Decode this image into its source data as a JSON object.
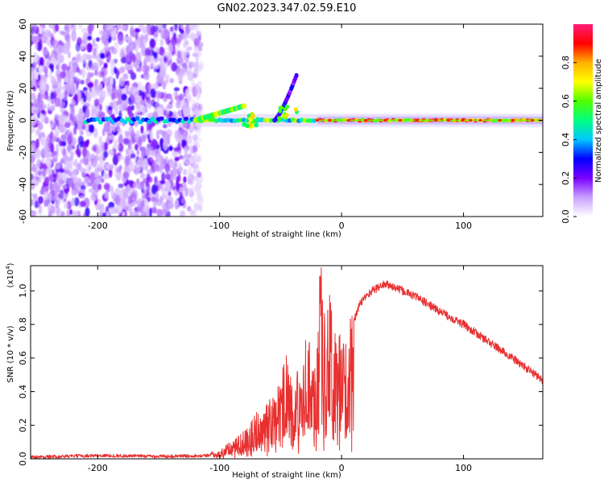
{
  "chart_data": [
    {
      "type": "heatmap",
      "title": "GN02.2023.347.02.59.E10",
      "xlabel": "Height of straight line (km)",
      "ylabel": "Frequency (Hz)",
      "xlim": [
        -255,
        165
      ],
      "ylim": [
        -60,
        60
      ],
      "xticks": [
        -200,
        -100,
        0,
        100
      ],
      "yticks": [
        -60,
        -40,
        -20,
        0,
        20,
        40,
        60
      ],
      "colorbar": {
        "label": "Normalized spectral amplitude",
        "range": [
          0.0,
          1.0
        ],
        "ticks": [
          "0.0",
          "0.2",
          "0.4",
          "0.6",
          "0.8"
        ],
        "colormap": [
          "#ffffff",
          "#c8a0ff",
          "#7b00ff",
          "#0000ff",
          "#00c8ff",
          "#00ff80",
          "#50ff00",
          "#ffff00",
          "#ffb000",
          "#ff0000",
          "#ff1e78"
        ]
      },
      "features": [
        {
          "name": "diffuse noise",
          "x_range": [
            -255,
            -115
          ],
          "freq_range": [
            -60,
            60
          ],
          "level": 0.25
        },
        {
          "name": "carrier line",
          "x_range": [
            -210,
            165
          ],
          "freq": 0,
          "level": 0.85
        },
        {
          "name": "upper chirp",
          "x_range": [
            -120,
            -80
          ],
          "freq_range": [
            0,
            9
          ]
        },
        {
          "name": "secondary chirp",
          "x_range": [
            -55,
            -37
          ],
          "freq_range": [
            0,
            28
          ]
        }
      ]
    },
    {
      "type": "line",
      "xlabel": "Height of straight line (km)",
      "ylabel": "SNR (10 * v/v)",
      "yscale_label": "(x10",
      "yscale_exponent": "4",
      "yscale_close": ")",
      "xlim": [
        -255,
        165
      ],
      "ylim": [
        0,
        1.15
      ],
      "xticks": [
        -200,
        -100,
        0,
        100
      ],
      "yticks": [
        "0.0",
        "0.2",
        "0.4",
        "0.6",
        "0.8",
        "1.0"
      ],
      "line_color": "#e83030",
      "series": [
        {
          "name": "SNR",
          "x": [
            -255,
            -200,
            -150,
            -110,
            -100,
            -90,
            -80,
            -70,
            -60,
            -50,
            -45,
            -40,
            -35,
            -30,
            -25,
            -20,
            -17,
            -15,
            -10,
            -5,
            0,
            5,
            10,
            15,
            20,
            25,
            30,
            35,
            40,
            50,
            60,
            80,
            100,
            120,
            140,
            165
          ],
          "y": [
            0.01,
            0.02,
            0.015,
            0.02,
            0.05,
            0.1,
            0.15,
            0.25,
            0.3,
            0.4,
            0.6,
            0.35,
            0.5,
            0.7,
            0.6,
            0.65,
            1.12,
            0.8,
            0.85,
            0.75,
            0.6,
            0.72,
            0.82,
            0.92,
            0.97,
            1.0,
            1.02,
            1.04,
            1.03,
            1.0,
            0.97,
            0.88,
            0.8,
            0.7,
            0.6,
            0.47
          ]
        }
      ]
    }
  ]
}
